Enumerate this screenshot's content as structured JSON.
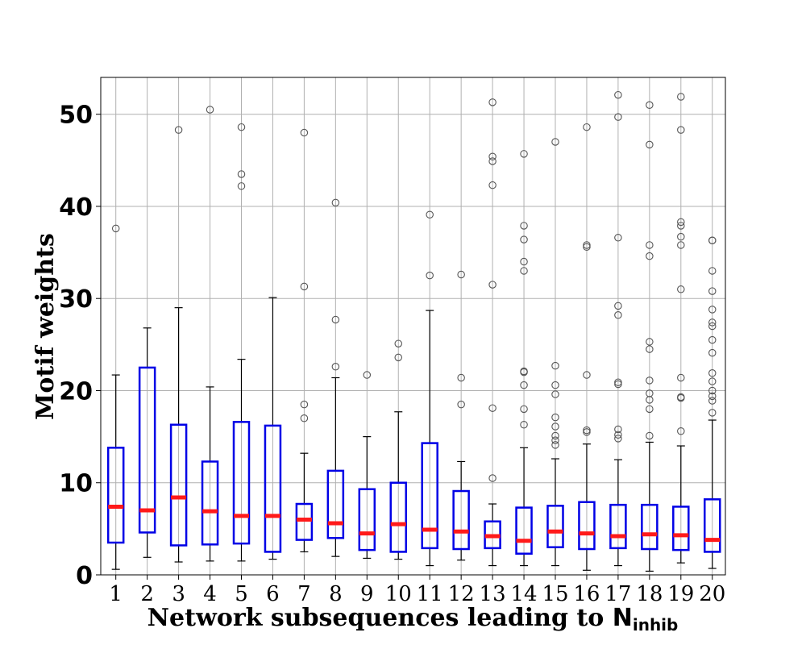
{
  "chart_data": {
    "type": "box",
    "xlabel_prefix": "Network subsequences leading to ",
    "xlabel_symbol": "N",
    "xlabel_subscript": "inhib",
    "ylabel": "Motif weights",
    "ylim": [
      0,
      54
    ],
    "yticks": [
      0,
      10,
      20,
      30,
      40,
      50
    ],
    "grid": true,
    "colors": {
      "box": "#0000e6",
      "median": "#ff1a1a",
      "whisker": "#000000",
      "outlier": "#555555",
      "grid": "#b0b0b0"
    },
    "categories": [
      "1",
      "2",
      "3",
      "4",
      "5",
      "6",
      "7",
      "8",
      "9",
      "10",
      "11",
      "12",
      "13",
      "14",
      "15",
      "16",
      "17",
      "18",
      "19",
      "20"
    ],
    "boxes": [
      {
        "whislo": 0.6,
        "q1": 3.5,
        "med": 7.4,
        "q3": 13.8,
        "whishi": 21.7,
        "fliers": [
          37.6
        ]
      },
      {
        "whislo": 1.9,
        "q1": 4.6,
        "med": 7.0,
        "q3": 22.5,
        "whishi": 26.8,
        "fliers": []
      },
      {
        "whislo": 1.4,
        "q1": 3.2,
        "med": 8.4,
        "q3": 16.3,
        "whishi": 29.0,
        "fliers": [
          48.3
        ]
      },
      {
        "whislo": 1.5,
        "q1": 3.3,
        "med": 6.9,
        "q3": 12.3,
        "whishi": 20.4,
        "fliers": [
          50.5
        ]
      },
      {
        "whislo": 1.5,
        "q1": 3.4,
        "med": 6.4,
        "q3": 16.6,
        "whishi": 23.4,
        "fliers": [
          42.2,
          43.5,
          48.6
        ]
      },
      {
        "whislo": 1.7,
        "q1": 2.5,
        "med": 6.4,
        "q3": 16.2,
        "whishi": 30.1,
        "fliers": []
      },
      {
        "whislo": 2.5,
        "q1": 3.8,
        "med": 6.0,
        "q3": 7.7,
        "whishi": 13.2,
        "fliers": [
          17.0,
          18.5,
          31.3,
          48.0
        ]
      },
      {
        "whislo": 2.0,
        "q1": 4.0,
        "med": 5.6,
        "q3": 11.3,
        "whishi": 21.4,
        "fliers": [
          22.6,
          27.7,
          40.4
        ]
      },
      {
        "whislo": 1.8,
        "q1": 2.7,
        "med": 4.5,
        "q3": 9.3,
        "whishi": 15.0,
        "fliers": [
          21.7
        ]
      },
      {
        "whislo": 1.7,
        "q1": 2.5,
        "med": 5.5,
        "q3": 10.0,
        "whishi": 17.7,
        "fliers": [
          23.6,
          25.1
        ]
      },
      {
        "whislo": 1.0,
        "q1": 2.9,
        "med": 4.9,
        "q3": 14.3,
        "whishi": 28.7,
        "fliers": [
          32.5,
          39.1
        ]
      },
      {
        "whislo": 1.6,
        "q1": 2.8,
        "med": 4.7,
        "q3": 9.1,
        "whishi": 12.3,
        "fliers": [
          18.5,
          21.4,
          32.6
        ]
      },
      {
        "whislo": 1.0,
        "q1": 2.9,
        "med": 4.2,
        "q3": 5.8,
        "whishi": 7.7,
        "fliers": [
          10.5,
          18.1,
          31.5,
          42.3,
          44.9,
          45.4,
          51.3
        ]
      },
      {
        "whislo": 1.0,
        "q1": 2.3,
        "med": 3.7,
        "q3": 7.3,
        "whishi": 13.8,
        "fliers": [
          16.3,
          18.0,
          20.6,
          22.0,
          22.1,
          33.0,
          34.0,
          36.4,
          37.9,
          45.7
        ]
      },
      {
        "whislo": 1.0,
        "q1": 3.0,
        "med": 4.7,
        "q3": 7.5,
        "whishi": 12.6,
        "fliers": [
          14.1,
          14.6,
          15.1,
          16.1,
          17.1,
          19.6,
          20.6,
          22.7,
          47.0
        ]
      },
      {
        "whislo": 0.5,
        "q1": 2.8,
        "med": 4.5,
        "q3": 7.9,
        "whishi": 14.2,
        "fliers": [
          15.5,
          15.7,
          21.7,
          35.6,
          35.8,
          48.6
        ]
      },
      {
        "whislo": 1.0,
        "q1": 2.9,
        "med": 4.2,
        "q3": 7.6,
        "whishi": 12.5,
        "fliers": [
          14.8,
          15.2,
          15.8,
          20.7,
          20.9,
          28.2,
          29.2,
          36.6,
          49.7,
          52.1
        ]
      },
      {
        "whislo": 0.4,
        "q1": 2.8,
        "med": 4.4,
        "q3": 7.6,
        "whishi": 14.4,
        "fliers": [
          15.1,
          18.0,
          19.0,
          19.7,
          21.1,
          24.5,
          25.3,
          34.6,
          35.8,
          46.7,
          51.0
        ]
      },
      {
        "whislo": 1.3,
        "q1": 2.7,
        "med": 4.3,
        "q3": 7.4,
        "whishi": 14.0,
        "fliers": [
          15.6,
          19.2,
          19.3,
          21.4,
          31.0,
          35.8,
          36.7,
          37.9,
          38.3,
          48.3,
          51.9
        ]
      },
      {
        "whislo": 0.7,
        "q1": 2.5,
        "med": 3.8,
        "q3": 8.2,
        "whishi": 16.8,
        "fliers": [
          17.6,
          18.9,
          19.4,
          20.0,
          21.0,
          21.9,
          24.1,
          25.5,
          27.0,
          27.4,
          28.8,
          30.8,
          33.0,
          36.3,
          36.3
        ]
      }
    ]
  }
}
